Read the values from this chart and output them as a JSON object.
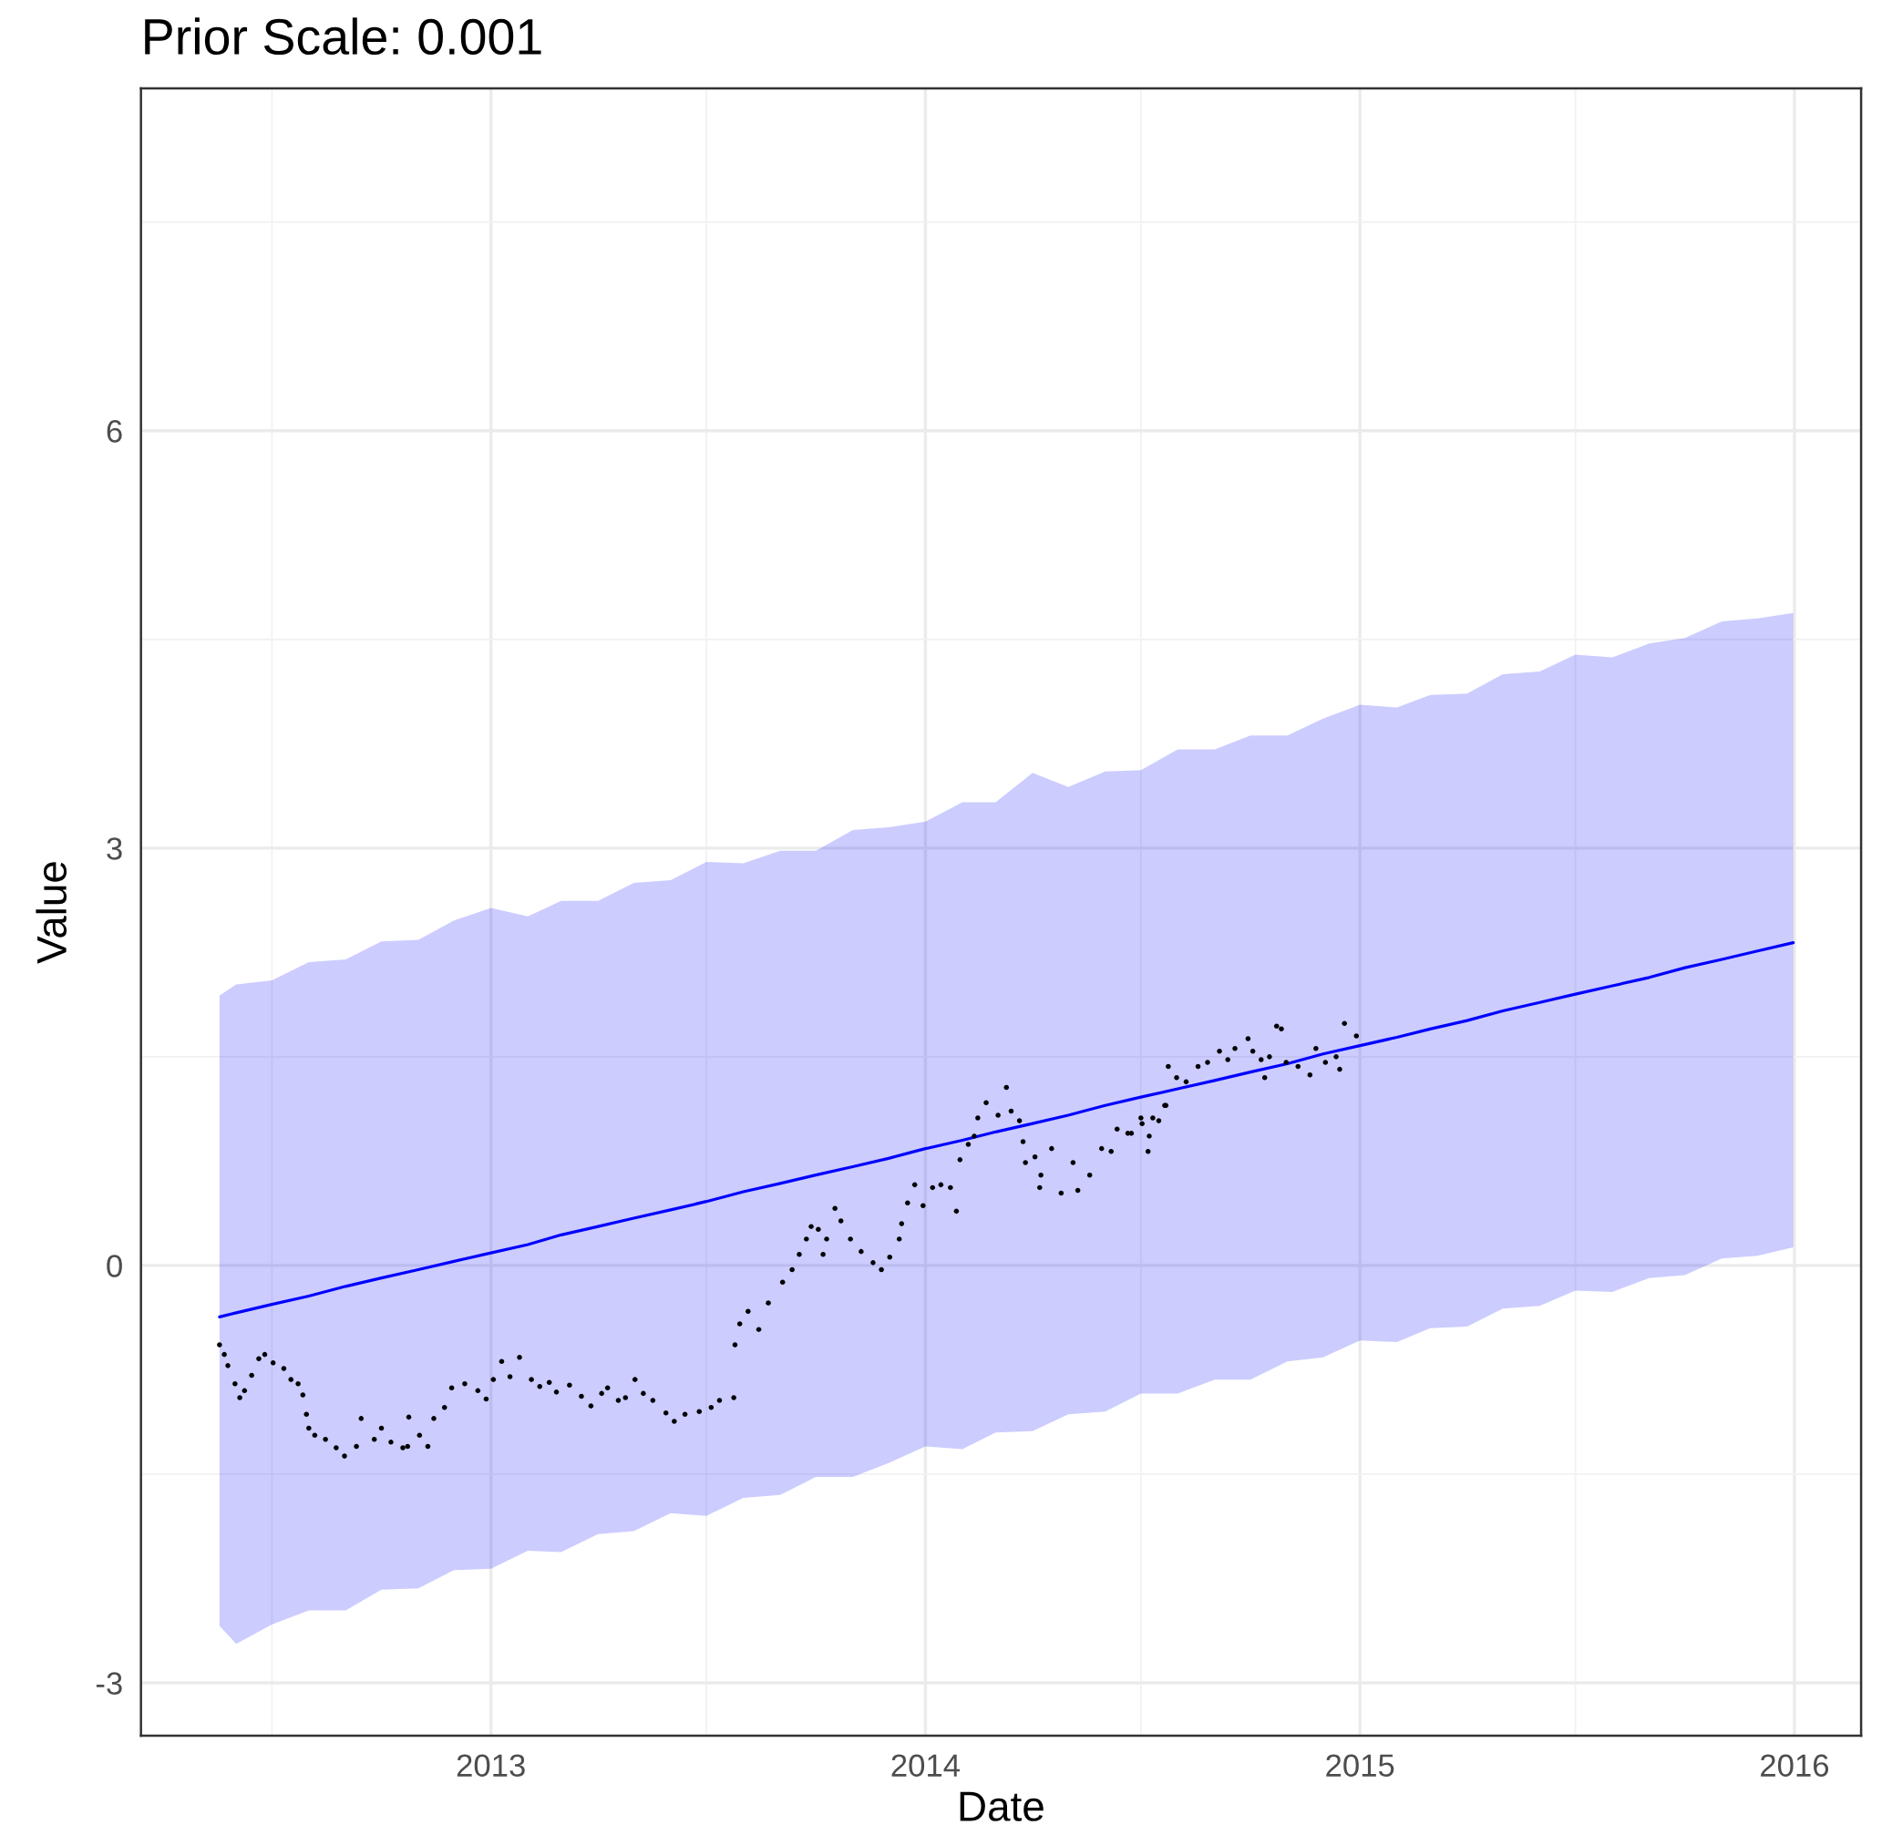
{
  "chart_data": {
    "type": "line",
    "title": "Prior Scale: 0.001",
    "xlabel": "Date",
    "ylabel": "Value",
    "grid": true,
    "xlim": [
      "2012-03-13",
      "2016-02-26"
    ],
    "ylim": [
      -3.38,
      8.46
    ],
    "xticks": [
      {
        "value": "2012-07-01",
        "label": null
      },
      {
        "value": "2013-01-01",
        "label": "2013"
      },
      {
        "value": "2013-07-01",
        "label": null
      },
      {
        "value": "2014-01-01",
        "label": "2014"
      },
      {
        "value": "2014-07-01",
        "label": null
      },
      {
        "value": "2015-01-01",
        "label": "2015"
      },
      {
        "value": "2015-07-01",
        "label": null
      },
      {
        "value": "2016-01-01",
        "label": "2016"
      }
    ],
    "yticks": [
      -3,
      {
        "value": -1.5,
        "label": null
      },
      0,
      {
        "value": 1.5,
        "label": null
      },
      3,
      {
        "value": 4.5,
        "label": null
      },
      6,
      {
        "value": 7.5,
        "label": null
      }
    ],
    "series": [
      {
        "color": "#0000ff",
        "x": [
          "2012-05-18",
          "2012-06-01",
          "2012-07-01",
          "2012-08-01",
          "2012-09-01",
          "2012-10-01",
          "2012-11-01",
          "2012-12-01",
          "2013-01-01",
          "2013-02-01",
          "2013-03-01",
          "2013-04-01",
          "2013-05-01",
          "2013-06-01",
          "2013-07-01",
          "2013-08-01",
          "2013-09-01",
          "2013-10-01",
          "2013-11-01",
          "2013-12-01",
          "2014-01-01",
          "2014-02-01",
          "2014-03-01",
          "2014-04-01",
          "2014-05-01",
          "2014-06-01",
          "2014-07-01",
          "2014-08-01",
          "2014-09-01",
          "2014-10-01",
          "2014-11-01",
          "2014-12-01",
          "2015-01-01",
          "2015-02-01",
          "2015-03-01",
          "2015-04-01",
          "2015-05-01",
          "2015-06-01",
          "2015-07-01",
          "2015-08-01",
          "2015-09-01",
          "2015-10-01",
          "2015-11-01",
          "2015-12-01",
          "2015-12-31"
        ],
        "values": [
          -0.37,
          -0.34,
          -0.28,
          -0.22,
          -0.15,
          -0.09,
          -0.03,
          0.03,
          0.09,
          0.15,
          0.22,
          0.28,
          0.34,
          0.4,
          0.46,
          0.53,
          0.59,
          0.65,
          0.71,
          0.77,
          0.84,
          0.9,
          0.96,
          1.02,
          1.08,
          1.15,
          1.21,
          1.27,
          1.33,
          1.39,
          1.45,
          1.52,
          1.58,
          1.64,
          1.7,
          1.76,
          1.83,
          1.89,
          1.95,
          2.01,
          2.07,
          2.14,
          2.2,
          2.26,
          2.32
        ],
        "lower": [
          -2.59,
          -2.72,
          -2.58,
          -2.48,
          -2.48,
          -2.33,
          -2.32,
          -2.19,
          -2.18,
          -2.05,
          -2.06,
          -1.93,
          -1.91,
          -1.78,
          -1.8,
          -1.67,
          -1.65,
          -1.52,
          -1.52,
          -1.42,
          -1.3,
          -1.32,
          -1.2,
          -1.19,
          -1.07,
          -1.05,
          -0.92,
          -0.92,
          -0.82,
          -0.82,
          -0.69,
          -0.66,
          -0.54,
          -0.55,
          -0.45,
          -0.44,
          -0.31,
          -0.29,
          -0.18,
          -0.19,
          -0.09,
          -0.07,
          0.05,
          0.07,
          0.13
        ],
        "upper": [
          1.94,
          2.02,
          2.05,
          2.18,
          2.2,
          2.33,
          2.34,
          2.48,
          2.57,
          2.51,
          2.62,
          2.62,
          2.75,
          2.77,
          2.9,
          2.89,
          2.98,
          2.98,
          3.13,
          3.15,
          3.19,
          3.33,
          3.33,
          3.54,
          3.44,
          3.55,
          3.56,
          3.71,
          3.71,
          3.81,
          3.81,
          3.93,
          4.03,
          4.01,
          4.1,
          4.11,
          4.25,
          4.27,
          4.39,
          4.37,
          4.47,
          4.51,
          4.63,
          4.65,
          4.69
        ]
      },
      {
        "type": "scatter",
        "color": "#000000",
        "marker": "circle",
        "x": [
          "2012-05-18",
          "2012-05-22",
          "2012-05-25",
          "2012-05-31",
          "2012-06-04",
          "2012-06-08",
          "2012-06-14",
          "2012-06-20",
          "2012-06-25",
          "2012-07-02",
          "2012-07-11",
          "2012-07-17",
          "2012-07-23",
          "2012-07-27",
          "2012-07-30",
          "2012-08-01",
          "2012-08-06",
          "2012-08-15",
          "2012-08-24",
          "2012-08-31",
          "2012-09-10",
          "2012-09-14",
          "2012-09-25",
          "2012-10-01",
          "2012-10-09",
          "2012-10-19",
          "2012-10-23",
          "2012-10-24",
          "2012-11-02",
          "2012-11-09",
          "2012-11-14",
          "2012-11-23",
          "2012-11-29",
          "2012-12-10",
          "2012-12-21",
          "2012-12-28",
          "2013-01-03",
          "2013-01-10",
          "2013-01-17",
          "2013-01-25",
          "2013-02-04",
          "2013-02-11",
          "2013-02-19",
          "2013-02-25",
          "2013-03-08",
          "2013-03-18",
          "2013-03-26",
          "2013-04-04",
          "2013-04-09",
          "2013-04-18",
          "2013-04-24",
          "2013-05-02",
          "2013-05-09",
          "2013-05-17",
          "2013-05-28",
          "2013-06-04",
          "2013-06-13",
          "2013-06-25",
          "2013-07-05",
          "2013-07-12",
          "2013-07-24",
          "2013-07-25",
          "2013-07-29",
          "2013-08-05",
          "2013-08-14",
          "2013-08-22",
          "2013-09-03",
          "2013-09-11",
          "2013-09-17",
          "2013-09-23",
          "2013-09-27",
          "2013-10-03",
          "2013-10-07",
          "2013-10-10",
          "2013-10-17",
          "2013-10-22",
          "2013-10-30",
          "2013-11-08",
          "2013-11-18",
          "2013-11-25",
          "2013-12-02",
          "2013-12-10",
          "2013-12-12",
          "2013-12-17",
          "2013-12-23",
          "2013-12-30",
          "2014-01-07",
          "2014-01-14",
          "2014-01-22",
          "2014-01-27",
          "2014-01-30",
          "2014-02-06",
          "2014-02-11",
          "2014-02-14",
          "2014-02-21",
          "2014-03-03",
          "2014-03-10",
          "2014-03-14",
          "2014-03-21",
          "2014-03-24",
          "2014-03-26",
          "2014-04-03",
          "2014-04-07",
          "2014-04-08",
          "2014-04-17",
          "2014-04-25",
          "2014-05-05",
          "2014-05-09",
          "2014-05-19",
          "2014-05-29",
          "2014-06-06",
          "2014-06-11",
          "2014-06-20",
          "2014-06-23",
          "2014-07-01",
          "2014-07-02",
          "2014-07-07",
          "2014-07-08",
          "2014-07-11",
          "2014-07-16",
          "2014-07-21",
          "2014-07-22",
          "2014-07-24",
          "2014-07-31",
          "2014-08-08",
          "2014-08-18",
          "2014-08-26",
          "2014-09-05",
          "2014-09-12",
          "2014-09-18",
          "2014-09-29",
          "2014-10-03",
          "2014-10-10",
          "2014-10-13",
          "2014-10-17",
          "2014-10-23",
          "2014-10-27",
          "2014-10-31",
          "2014-11-10",
          "2014-11-20",
          "2014-11-25",
          "2014-12-03",
          "2014-12-12",
          "2014-12-15",
          "2014-12-19",
          "2014-12-29"
        ],
        "values": [
          -0.57,
          -0.64,
          -0.72,
          -0.85,
          -0.95,
          -0.9,
          -0.79,
          -0.67,
          -0.64,
          -0.7,
          -0.74,
          -0.82,
          -0.85,
          -0.93,
          -1.07,
          -1.17,
          -1.22,
          -1.25,
          -1.31,
          -1.37,
          -1.3,
          -1.1,
          -1.25,
          -1.17,
          -1.27,
          -1.31,
          -1.3,
          -1.09,
          -1.22,
          -1.3,
          -1.1,
          -1.02,
          -0.88,
          -0.85,
          -0.9,
          -0.96,
          -0.82,
          -0.69,
          -0.8,
          -0.66,
          -0.82,
          -0.87,
          -0.84,
          -0.91,
          -0.86,
          -0.94,
          -1.01,
          -0.92,
          -0.88,
          -0.97,
          -0.95,
          -0.82,
          -0.92,
          -0.97,
          -1.06,
          -1.12,
          -1.07,
          -1.05,
          -1.02,
          -0.97,
          -0.95,
          -0.57,
          -0.42,
          -0.33,
          -0.46,
          -0.27,
          -0.12,
          -0.03,
          0.08,
          0.19,
          0.28,
          0.26,
          0.08,
          0.19,
          0.41,
          0.32,
          0.19,
          0.1,
          0.02,
          -0.03,
          0.06,
          0.19,
          0.3,
          0.45,
          0.58,
          0.43,
          0.56,
          0.58,
          0.56,
          0.39,
          0.76,
          0.87,
          0.93,
          1.06,
          1.17,
          1.08,
          1.28,
          1.11,
          1.04,
          0.89,
          0.74,
          0.78,
          0.56,
          0.65,
          0.84,
          0.52,
          0.74,
          0.54,
          0.65,
          0.84,
          0.82,
          0.98,
          0.95,
          0.95,
          1.06,
          1.02,
          0.82,
          0.93,
          1.06,
          1.04,
          1.15,
          1.15,
          1.43,
          1.35,
          1.32,
          1.43,
          1.46,
          1.54,
          1.48,
          1.56,
          1.63,
          1.54,
          1.48,
          1.35,
          1.5,
          1.72,
          1.7,
          1.46,
          1.43,
          1.37,
          1.56,
          1.46,
          1.5,
          1.41,
          1.74,
          1.65
        ]
      }
    ]
  }
}
